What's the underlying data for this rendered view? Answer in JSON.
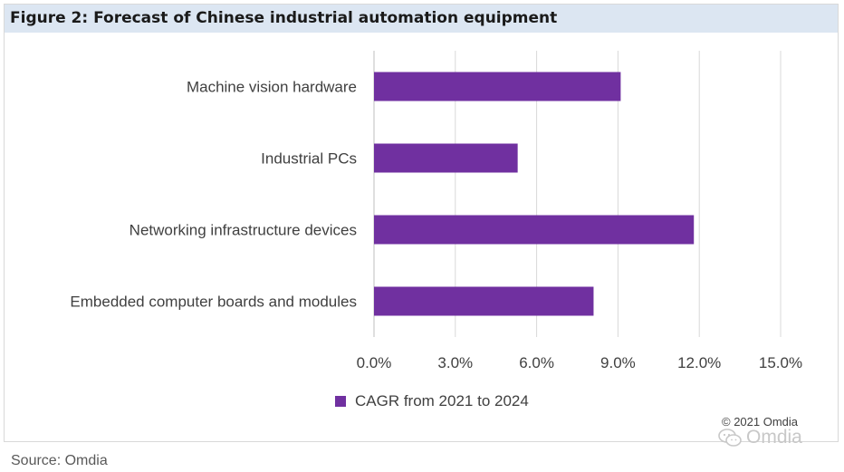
{
  "title": "Figure 2: Forecast of Chinese industrial automation equipment",
  "source": "Source: Omdia",
  "copyright": "© 2021 Omdia",
  "watermark": "Omdia",
  "colors": {
    "bar": "#7030a0",
    "grid": "#d9d9d9",
    "title_bg": "#dce6f2",
    "axis_text": "#404040"
  },
  "chart_data": {
    "type": "bar",
    "orientation": "horizontal",
    "categories": [
      "Machine vision hardware",
      "Industrial PCs",
      "Networking infrastructure devices",
      "Embedded computer boards and modules"
    ],
    "series": [
      {
        "name": "CAGR from 2021 to 2024",
        "values": [
          9.1,
          5.3,
          11.8,
          8.1
        ]
      }
    ],
    "xlim": [
      0,
      15
    ],
    "xticks": [
      "0.0%",
      "3.0%",
      "6.0%",
      "9.0%",
      "12.0%",
      "15.0%"
    ],
    "grid": true,
    "legend": "bottom"
  }
}
